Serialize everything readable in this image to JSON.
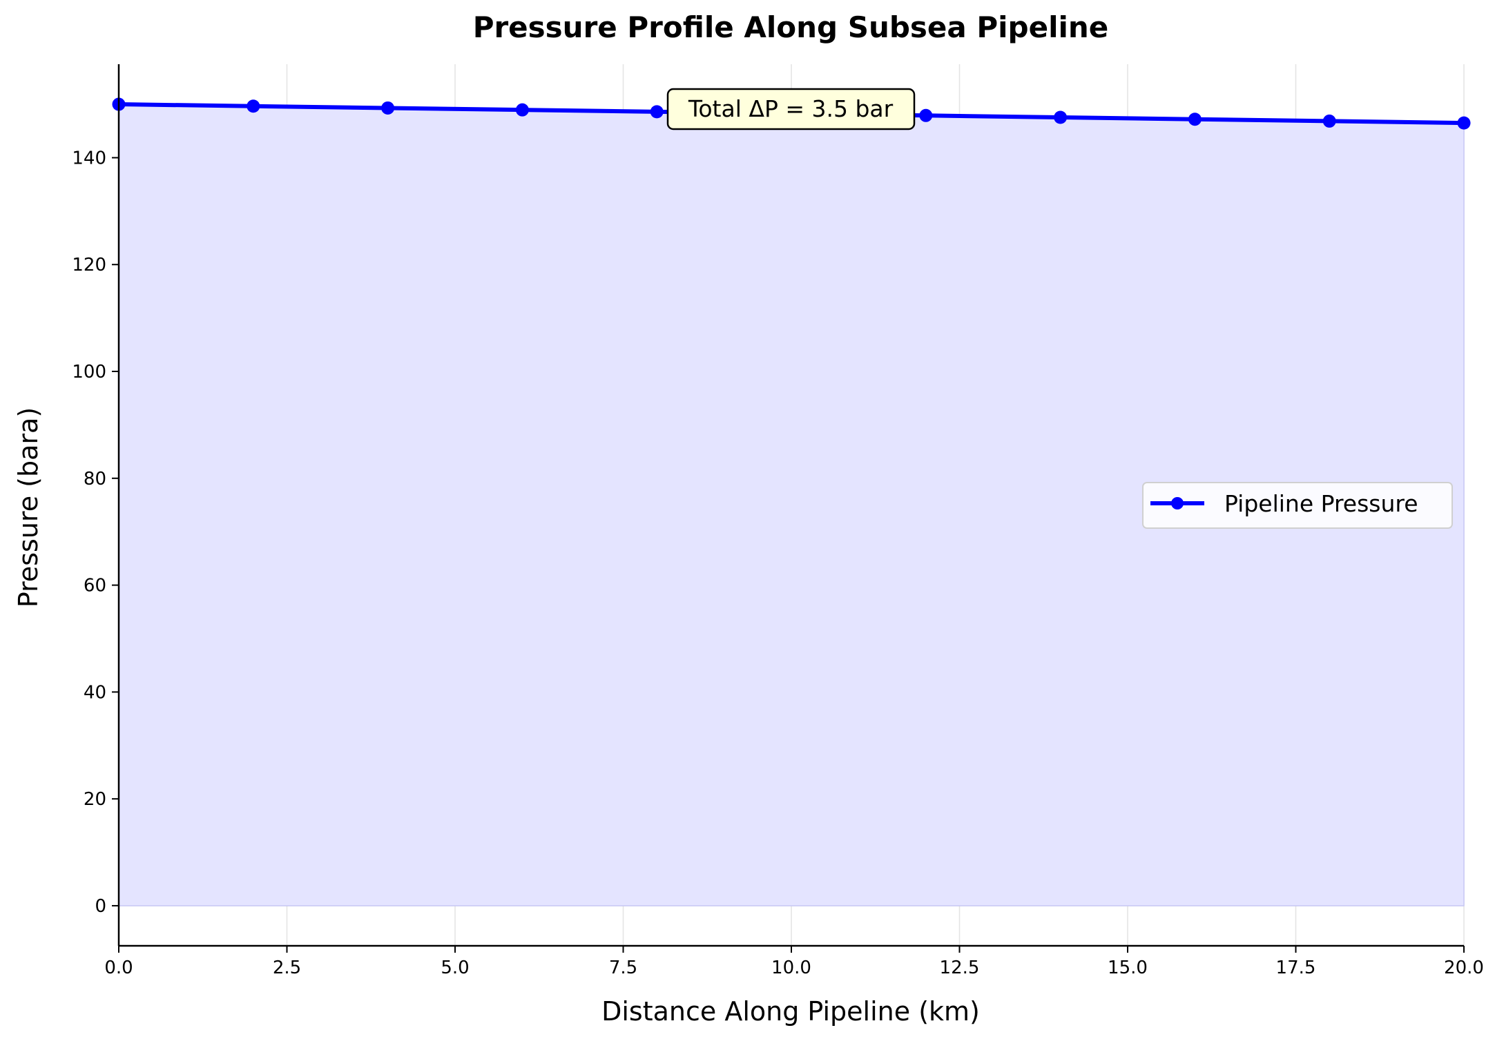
{
  "chart_data": {
    "type": "line",
    "title": "Pressure Profile Along Subsea Pipeline",
    "xlabel": "Distance Along Pipeline (km)",
    "ylabel": "Pressure (bara)",
    "xlim": [
      0,
      20
    ],
    "ylim": [
      -7.5,
      157.5
    ],
    "x_ticks": [
      0.0,
      2.5,
      5.0,
      7.5,
      10.0,
      12.5,
      15.0,
      17.5,
      20.0
    ],
    "x_tick_labels": [
      "0.0",
      "2.5",
      "5.0",
      "7.5",
      "10.0",
      "12.5",
      "15.0",
      "17.5",
      "20.0"
    ],
    "y_ticks": [
      0,
      20,
      40,
      60,
      80,
      100,
      120,
      140
    ],
    "y_tick_labels": [
      "0",
      "20",
      "40",
      "60",
      "80",
      "100",
      "120",
      "140"
    ],
    "grid": true,
    "series": [
      {
        "name": "Pipeline Pressure",
        "color": "#0000ff",
        "fill_color": "#e4e4ff",
        "x": [
          0,
          2,
          4,
          6,
          8,
          10,
          12,
          14,
          16,
          18,
          20
        ],
        "y": [
          150.0,
          149.65,
          149.3,
          148.95,
          148.6,
          148.25,
          147.9,
          147.55,
          147.2,
          146.85,
          146.5
        ]
      }
    ],
    "legend": {
      "position": "center-right",
      "entries": [
        "Pipeline Pressure"
      ]
    },
    "annotation": {
      "text": "Total ΔP = 3.5 bar",
      "x": 10.0,
      "y": 150.0,
      "background": "#ffffdd"
    }
  }
}
